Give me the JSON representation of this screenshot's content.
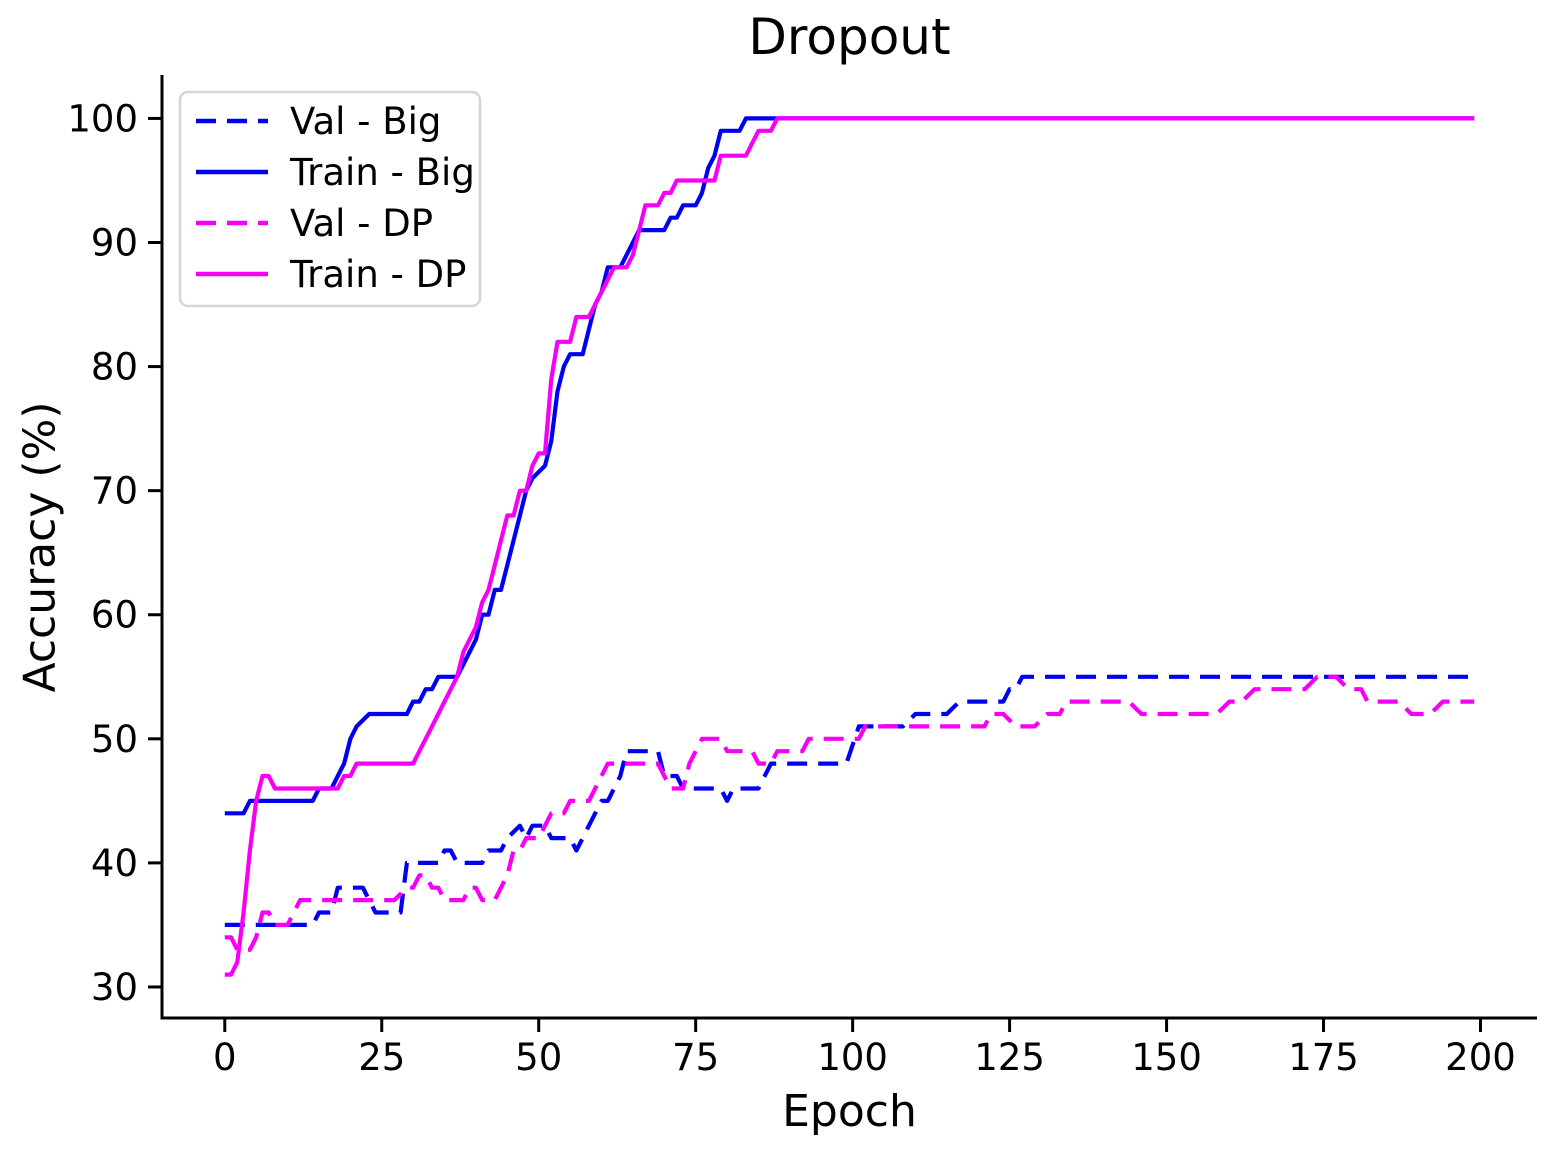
{
  "title": "Dropout",
  "chart_data": {
    "type": "line",
    "title": "Dropout",
    "xlabel": "Epoch",
    "ylabel": "Accuracy (%)",
    "xlim": [
      -10,
      209
    ],
    "ylim": [
      27.5,
      103.5
    ],
    "x_ticks": [
      0,
      25,
      50,
      75,
      100,
      125,
      150,
      175,
      200
    ],
    "y_ticks": [
      30,
      40,
      50,
      60,
      70,
      80,
      90,
      100
    ],
    "grid": false,
    "legend_position": "upper left",
    "line_width": 4.2,
    "dash_pattern": [
      20,
      11
    ],
    "axis_color": "#000000",
    "legend_border_color": "#d5d5d5",
    "series": [
      {
        "name": "Val - Big",
        "color": "#0000f0",
        "style": "dashed",
        "points": [
          [
            0,
            35
          ],
          [
            14,
            35
          ],
          [
            15,
            36
          ],
          [
            17,
            36
          ],
          [
            18,
            38
          ],
          [
            22,
            38
          ],
          [
            23,
            37
          ],
          [
            24,
            36
          ],
          [
            28,
            36
          ],
          [
            29,
            40
          ],
          [
            34,
            40
          ],
          [
            35,
            41
          ],
          [
            36,
            41
          ],
          [
            37,
            40
          ],
          [
            41,
            40
          ],
          [
            42,
            41
          ],
          [
            44,
            41
          ],
          [
            45,
            42
          ],
          [
            47,
            43
          ],
          [
            48,
            42
          ],
          [
            49,
            43
          ],
          [
            51,
            43
          ],
          [
            52,
            42
          ],
          [
            55,
            42
          ],
          [
            56,
            41
          ],
          [
            58,
            43
          ],
          [
            60,
            45
          ],
          [
            61,
            45
          ],
          [
            62,
            46
          ],
          [
            63,
            47
          ],
          [
            64,
            49
          ],
          [
            69,
            49
          ],
          [
            70,
            47
          ],
          [
            72,
            47
          ],
          [
            73,
            46
          ],
          [
            79,
            46
          ],
          [
            80,
            45
          ],
          [
            81,
            46
          ],
          [
            85,
            46
          ],
          [
            86,
            47
          ],
          [
            87,
            48
          ],
          [
            99,
            48
          ],
          [
            101,
            51
          ],
          [
            108,
            51
          ],
          [
            110,
            52
          ],
          [
            115,
            52
          ],
          [
            117,
            53
          ],
          [
            124,
            53
          ],
          [
            125,
            54
          ],
          [
            126,
            54
          ],
          [
            127,
            55
          ],
          [
            199,
            55
          ]
        ]
      },
      {
        "name": "Train - Big",
        "color": "#0000f0",
        "style": "solid",
        "points": [
          [
            0,
            44
          ],
          [
            3,
            44
          ],
          [
            4,
            45
          ],
          [
            14,
            45
          ],
          [
            15,
            46
          ],
          [
            17,
            46
          ],
          [
            18,
            47
          ],
          [
            19,
            48
          ],
          [
            20,
            50
          ],
          [
            21,
            51
          ],
          [
            23,
            52
          ],
          [
            29,
            52
          ],
          [
            30,
            53
          ],
          [
            31,
            53
          ],
          [
            32,
            54
          ],
          [
            33,
            54
          ],
          [
            34,
            55
          ],
          [
            37,
            55
          ],
          [
            38,
            56
          ],
          [
            39,
            57
          ],
          [
            40,
            58
          ],
          [
            41,
            60
          ],
          [
            42,
            60
          ],
          [
            43,
            62
          ],
          [
            44,
            62
          ],
          [
            45,
            64
          ],
          [
            46,
            66
          ],
          [
            47,
            68
          ],
          [
            48,
            70
          ],
          [
            49,
            71
          ],
          [
            51,
            72
          ],
          [
            52,
            74
          ],
          [
            53,
            78
          ],
          [
            54,
            80
          ],
          [
            55,
            81
          ],
          [
            57,
            81
          ],
          [
            58,
            83
          ],
          [
            59,
            85
          ],
          [
            60,
            86
          ],
          [
            61,
            88
          ],
          [
            63,
            88
          ],
          [
            64,
            89
          ],
          [
            65,
            90
          ],
          [
            66,
            91
          ],
          [
            70,
            91
          ],
          [
            71,
            92
          ],
          [
            72,
            92
          ],
          [
            73,
            93
          ],
          [
            75,
            93
          ],
          [
            76,
            94
          ],
          [
            77,
            96
          ],
          [
            78,
            97
          ],
          [
            79,
            99
          ],
          [
            82,
            99
          ],
          [
            83,
            100
          ],
          [
            199,
            100
          ]
        ]
      },
      {
        "name": "Val - DP",
        "color": "#f500f5",
        "style": "dashed",
        "points": [
          [
            0,
            34
          ],
          [
            1,
            34
          ],
          [
            2,
            33
          ],
          [
            4,
            33
          ],
          [
            5,
            34
          ],
          [
            6,
            36
          ],
          [
            7,
            36
          ],
          [
            8,
            35
          ],
          [
            10,
            35
          ],
          [
            11,
            36
          ],
          [
            12,
            37
          ],
          [
            27,
            37
          ],
          [
            29,
            38
          ],
          [
            30,
            38
          ],
          [
            31,
            39
          ],
          [
            32,
            39
          ],
          [
            33,
            38
          ],
          [
            34,
            38
          ],
          [
            35,
            37
          ],
          [
            38,
            37
          ],
          [
            39,
            38
          ],
          [
            40,
            38
          ],
          [
            41,
            37
          ],
          [
            43,
            37
          ],
          [
            44,
            38
          ],
          [
            45,
            39
          ],
          [
            46,
            41
          ],
          [
            47,
            41
          ],
          [
            48,
            42
          ],
          [
            50,
            42
          ],
          [
            51,
            43
          ],
          [
            52,
            44
          ],
          [
            54,
            44
          ],
          [
            55,
            45
          ],
          [
            58,
            45
          ],
          [
            59,
            46
          ],
          [
            60,
            47
          ],
          [
            61,
            48
          ],
          [
            62,
            48
          ],
          [
            69,
            48
          ],
          [
            70,
            47
          ],
          [
            71,
            46
          ],
          [
            73,
            46
          ],
          [
            74,
            48
          ],
          [
            75,
            49
          ],
          [
            76,
            50
          ],
          [
            79,
            50
          ],
          [
            80,
            49
          ],
          [
            84,
            49
          ],
          [
            85,
            48
          ],
          [
            87,
            48
          ],
          [
            88,
            49
          ],
          [
            92,
            49
          ],
          [
            93,
            50
          ],
          [
            101,
            50
          ],
          [
            102,
            51
          ],
          [
            121,
            51
          ],
          [
            122,
            52
          ],
          [
            124,
            52
          ],
          [
            126,
            51
          ],
          [
            129,
            51
          ],
          [
            131,
            52
          ],
          [
            133,
            52
          ],
          [
            134,
            53
          ],
          [
            144,
            53
          ],
          [
            146,
            52
          ],
          [
            158,
            52
          ],
          [
            160,
            53
          ],
          [
            162,
            53
          ],
          [
            164,
            54
          ],
          [
            172,
            54
          ],
          [
            174,
            55
          ],
          [
            177,
            55
          ],
          [
            179,
            54
          ],
          [
            181,
            54
          ],
          [
            182,
            53
          ],
          [
            187,
            53
          ],
          [
            189,
            52
          ],
          [
            192,
            52
          ],
          [
            194,
            53
          ],
          [
            199,
            53
          ]
        ]
      },
      {
        "name": "Train - DP",
        "color": "#f500f5",
        "style": "solid",
        "points": [
          [
            0,
            31
          ],
          [
            1,
            31
          ],
          [
            2,
            32
          ],
          [
            3,
            36
          ],
          [
            4,
            41
          ],
          [
            5,
            45
          ],
          [
            6,
            47
          ],
          [
            7,
            47
          ],
          [
            8,
            46
          ],
          [
            18,
            46
          ],
          [
            19,
            47
          ],
          [
            20,
            47
          ],
          [
            21,
            48
          ],
          [
            30,
            48
          ],
          [
            31,
            49
          ],
          [
            32,
            50
          ],
          [
            33,
            51
          ],
          [
            34,
            52
          ],
          [
            35,
            53
          ],
          [
            36,
            54
          ],
          [
            37,
            55
          ],
          [
            38,
            57
          ],
          [
            39,
            58
          ],
          [
            40,
            59
          ],
          [
            41,
            61
          ],
          [
            42,
            62
          ],
          [
            43,
            64
          ],
          [
            44,
            66
          ],
          [
            45,
            68
          ],
          [
            46,
            68
          ],
          [
            47,
            70
          ],
          [
            48,
            70
          ],
          [
            49,
            72
          ],
          [
            50,
            73
          ],
          [
            51,
            73
          ],
          [
            52,
            79
          ],
          [
            53,
            82
          ],
          [
            55,
            82
          ],
          [
            56,
            84
          ],
          [
            58,
            84
          ],
          [
            59,
            85
          ],
          [
            60,
            86
          ],
          [
            61,
            87
          ],
          [
            62,
            88
          ],
          [
            64,
            88
          ],
          [
            65,
            89
          ],
          [
            66,
            91
          ],
          [
            67,
            93
          ],
          [
            69,
            93
          ],
          [
            70,
            94
          ],
          [
            71,
            94
          ],
          [
            72,
            95
          ],
          [
            78,
            95
          ],
          [
            79,
            97
          ],
          [
            83,
            97
          ],
          [
            84,
            98
          ],
          [
            85,
            99
          ],
          [
            87,
            99
          ],
          [
            88,
            100
          ],
          [
            199,
            100
          ]
        ]
      }
    ]
  }
}
